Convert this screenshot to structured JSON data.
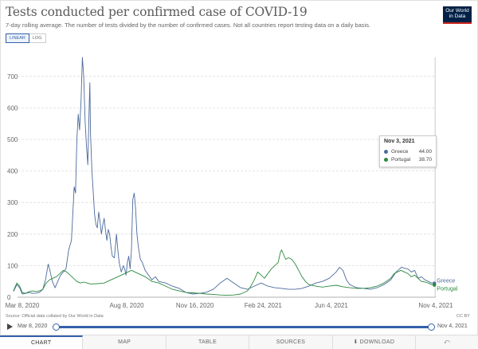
{
  "header": {
    "title": "Tests conducted per confirmed case of COVID-19",
    "subtitle": "7-day rolling average. The number of tests divided by the number of confirmed cases. Not all countries report testing data on a daily basis.",
    "logo_line1": "Our World",
    "logo_line2": "in Data"
  },
  "scale": {
    "linear_label": "LINEAR",
    "log_label": "LOG",
    "selected": "LINEAR"
  },
  "tooltip": {
    "date": "Nov 3, 2021",
    "rows": [
      {
        "name": "Greece",
        "value": "44.00"
      },
      {
        "name": "Portugal",
        "value": "38.70"
      }
    ]
  },
  "footer": {
    "source": "Source: Official data collated by Our World in Data",
    "license": "CC BY"
  },
  "timeline": {
    "start": "Mar 8, 2020",
    "end": "Nov 4, 2021"
  },
  "tabs": [
    "CHART",
    "MAP",
    "TABLE",
    "SOURCES",
    "DOWNLOAD"
  ],
  "colors": {
    "greece": "#4c6a9c",
    "portugal": "#2b8a3e",
    "accent": "#3360a9"
  },
  "icons": {
    "play": "play-icon",
    "download": "download-icon",
    "share": "share-icon"
  },
  "chart_data": {
    "type": "line",
    "title": "Tests conducted per confirmed case of COVID-19",
    "xlabel": "",
    "ylabel": "",
    "ylim": [
      0,
      750
    ],
    "y_ticks": [
      0,
      100,
      200,
      300,
      400,
      500,
      600,
      700
    ],
    "x_ticks": [
      {
        "day": 0,
        "label": "Mar 8, 2020"
      },
      {
        "day": 153,
        "label": "Aug 8, 2020"
      },
      {
        "day": 253,
        "label": "Nov 16, 2020"
      },
      {
        "day": 353,
        "label": "Feb 24, 2021"
      },
      {
        "day": 453,
        "label": "Jun 4, 2021"
      },
      {
        "day": 606,
        "label": "Nov 4, 2021"
      }
    ],
    "x_domain": [
      0,
      606
    ],
    "grid": true,
    "series": [
      {
        "name": "Greece",
        "color": "#4c6a9c",
        "points": [
          [
            -13,
            18
          ],
          [
            -8,
            40
          ],
          [
            -4,
            30
          ],
          [
            0,
            10
          ],
          [
            5,
            12
          ],
          [
            10,
            15
          ],
          [
            15,
            12
          ],
          [
            20,
            13
          ],
          [
            25,
            15
          ],
          [
            30,
            25
          ],
          [
            34,
            55
          ],
          [
            38,
            105
          ],
          [
            41,
            80
          ],
          [
            44,
            50
          ],
          [
            48,
            30
          ],
          [
            52,
            50
          ],
          [
            56,
            70
          ],
          [
            60,
            80
          ],
          [
            64,
            90
          ],
          [
            68,
            150
          ],
          [
            72,
            180
          ],
          [
            76,
            350
          ],
          [
            78,
            330
          ],
          [
            80,
            500
          ],
          [
            82,
            580
          ],
          [
            84,
            530
          ],
          [
            86,
            620
          ],
          [
            88,
            760
          ],
          [
            90,
            700
          ],
          [
            92,
            560
          ],
          [
            94,
            480
          ],
          [
            96,
            420
          ],
          [
            98,
            600
          ],
          [
            99,
            680
          ],
          [
            100,
            520
          ],
          [
            102,
            400
          ],
          [
            104,
            330
          ],
          [
            106,
            260
          ],
          [
            108,
            230
          ],
          [
            110,
            220
          ],
          [
            112,
            270
          ],
          [
            114,
            240
          ],
          [
            116,
            200
          ],
          [
            118,
            230
          ],
          [
            120,
            250
          ],
          [
            122,
            210
          ],
          [
            124,
            180
          ],
          [
            126,
            215
          ],
          [
            128,
            200
          ],
          [
            130,
            160
          ],
          [
            132,
            130
          ],
          [
            135,
            125
          ],
          [
            138,
            200
          ],
          [
            140,
            150
          ],
          [
            142,
            110
          ],
          [
            145,
            80
          ],
          [
            148,
            100
          ],
          [
            150,
            90
          ],
          [
            152,
            70
          ],
          [
            154,
            110
          ],
          [
            156,
            130
          ],
          [
            158,
            90
          ],
          [
            160,
            150
          ],
          [
            162,
            310
          ],
          [
            164,
            330
          ],
          [
            166,
            280
          ],
          [
            168,
            200
          ],
          [
            170,
            160
          ],
          [
            173,
            120
          ],
          [
            176,
            110
          ],
          [
            180,
            85
          ],
          [
            185,
            70
          ],
          [
            190,
            55
          ],
          [
            195,
            65
          ],
          [
            200,
            50
          ],
          [
            210,
            45
          ],
          [
            220,
            35
          ],
          [
            230,
            28
          ],
          [
            240,
            15
          ],
          [
            250,
            10
          ],
          [
            260,
            12
          ],
          [
            270,
            16
          ],
          [
            280,
            25
          ],
          [
            290,
            45
          ],
          [
            300,
            60
          ],
          [
            310,
            45
          ],
          [
            320,
            30
          ],
          [
            330,
            25
          ],
          [
            340,
            35
          ],
          [
            350,
            45
          ],
          [
            360,
            35
          ],
          [
            370,
            30
          ],
          [
            380,
            28
          ],
          [
            390,
            25
          ],
          [
            400,
            25
          ],
          [
            410,
            28
          ],
          [
            420,
            35
          ],
          [
            430,
            45
          ],
          [
            440,
            50
          ],
          [
            450,
            60
          ],
          [
            455,
            70
          ],
          [
            460,
            80
          ],
          [
            465,
            95
          ],
          [
            470,
            85
          ],
          [
            475,
            55
          ],
          [
            480,
            40
          ],
          [
            490,
            30
          ],
          [
            500,
            28
          ],
          [
            510,
            25
          ],
          [
            520,
            30
          ],
          [
            530,
            40
          ],
          [
            540,
            55
          ],
          [
            548,
            80
          ],
          [
            553,
            90
          ],
          [
            556,
            95
          ],
          [
            560,
            92
          ],
          [
            565,
            90
          ],
          [
            570,
            80
          ],
          [
            575,
            85
          ],
          [
            580,
            60
          ],
          [
            585,
            65
          ],
          [
            590,
            55
          ],
          [
            595,
            50
          ],
          [
            600,
            45
          ],
          [
            604,
            44
          ]
        ]
      },
      {
        "name": "Portugal",
        "color": "#2b8a3e",
        "points": [
          [
            -13,
            20
          ],
          [
            -8,
            45
          ],
          [
            -4,
            35
          ],
          [
            0,
            15
          ],
          [
            5,
            12
          ],
          [
            10,
            18
          ],
          [
            15,
            20
          ],
          [
            20,
            18
          ],
          [
            25,
            20
          ],
          [
            30,
            25
          ],
          [
            35,
            45
          ],
          [
            40,
            55
          ],
          [
            45,
            60
          ],
          [
            50,
            65
          ],
          [
            55,
            75
          ],
          [
            60,
            85
          ],
          [
            65,
            80
          ],
          [
            70,
            70
          ],
          [
            75,
            60
          ],
          [
            80,
            50
          ],
          [
            85,
            45
          ],
          [
            90,
            48
          ],
          [
            95,
            45
          ],
          [
            100,
            42
          ],
          [
            110,
            43
          ],
          [
            120,
            45
          ],
          [
            130,
            55
          ],
          [
            140,
            65
          ],
          [
            150,
            75
          ],
          [
            155,
            80
          ],
          [
            160,
            85
          ],
          [
            165,
            80
          ],
          [
            170,
            75
          ],
          [
            180,
            65
          ],
          [
            190,
            50
          ],
          [
            200,
            45
          ],
          [
            210,
            35
          ],
          [
            220,
            25
          ],
          [
            230,
            20
          ],
          [
            240,
            15
          ],
          [
            250,
            14
          ],
          [
            260,
            12
          ],
          [
            270,
            10
          ],
          [
            280,
            9
          ],
          [
            290,
            7
          ],
          [
            300,
            6
          ],
          [
            310,
            7
          ],
          [
            320,
            10
          ],
          [
            330,
            20
          ],
          [
            335,
            35
          ],
          [
            340,
            55
          ],
          [
            345,
            80
          ],
          [
            350,
            70
          ],
          [
            355,
            60
          ],
          [
            360,
            75
          ],
          [
            365,
            90
          ],
          [
            370,
            100
          ],
          [
            375,
            110
          ],
          [
            378,
            140
          ],
          [
            380,
            150
          ],
          [
            383,
            135
          ],
          [
            386,
            120
          ],
          [
            390,
            125
          ],
          [
            395,
            120
          ],
          [
            400,
            105
          ],
          [
            405,
            85
          ],
          [
            410,
            65
          ],
          [
            415,
            50
          ],
          [
            420,
            40
          ],
          [
            430,
            35
          ],
          [
            440,
            32
          ],
          [
            450,
            35
          ],
          [
            460,
            38
          ],
          [
            470,
            33
          ],
          [
            480,
            30
          ],
          [
            490,
            28
          ],
          [
            500,
            28
          ],
          [
            510,
            30
          ],
          [
            520,
            35
          ],
          [
            530,
            45
          ],
          [
            540,
            60
          ],
          [
            545,
            75
          ],
          [
            550,
            80
          ],
          [
            555,
            85
          ],
          [
            560,
            80
          ],
          [
            565,
            75
          ],
          [
            570,
            65
          ],
          [
            575,
            70
          ],
          [
            580,
            60
          ],
          [
            585,
            50
          ],
          [
            590,
            48
          ],
          [
            595,
            45
          ],
          [
            600,
            40
          ],
          [
            604,
            38.7
          ]
        ]
      }
    ],
    "end_labels": [
      "Greece",
      "Portugal"
    ],
    "highlight_day": 605
  }
}
